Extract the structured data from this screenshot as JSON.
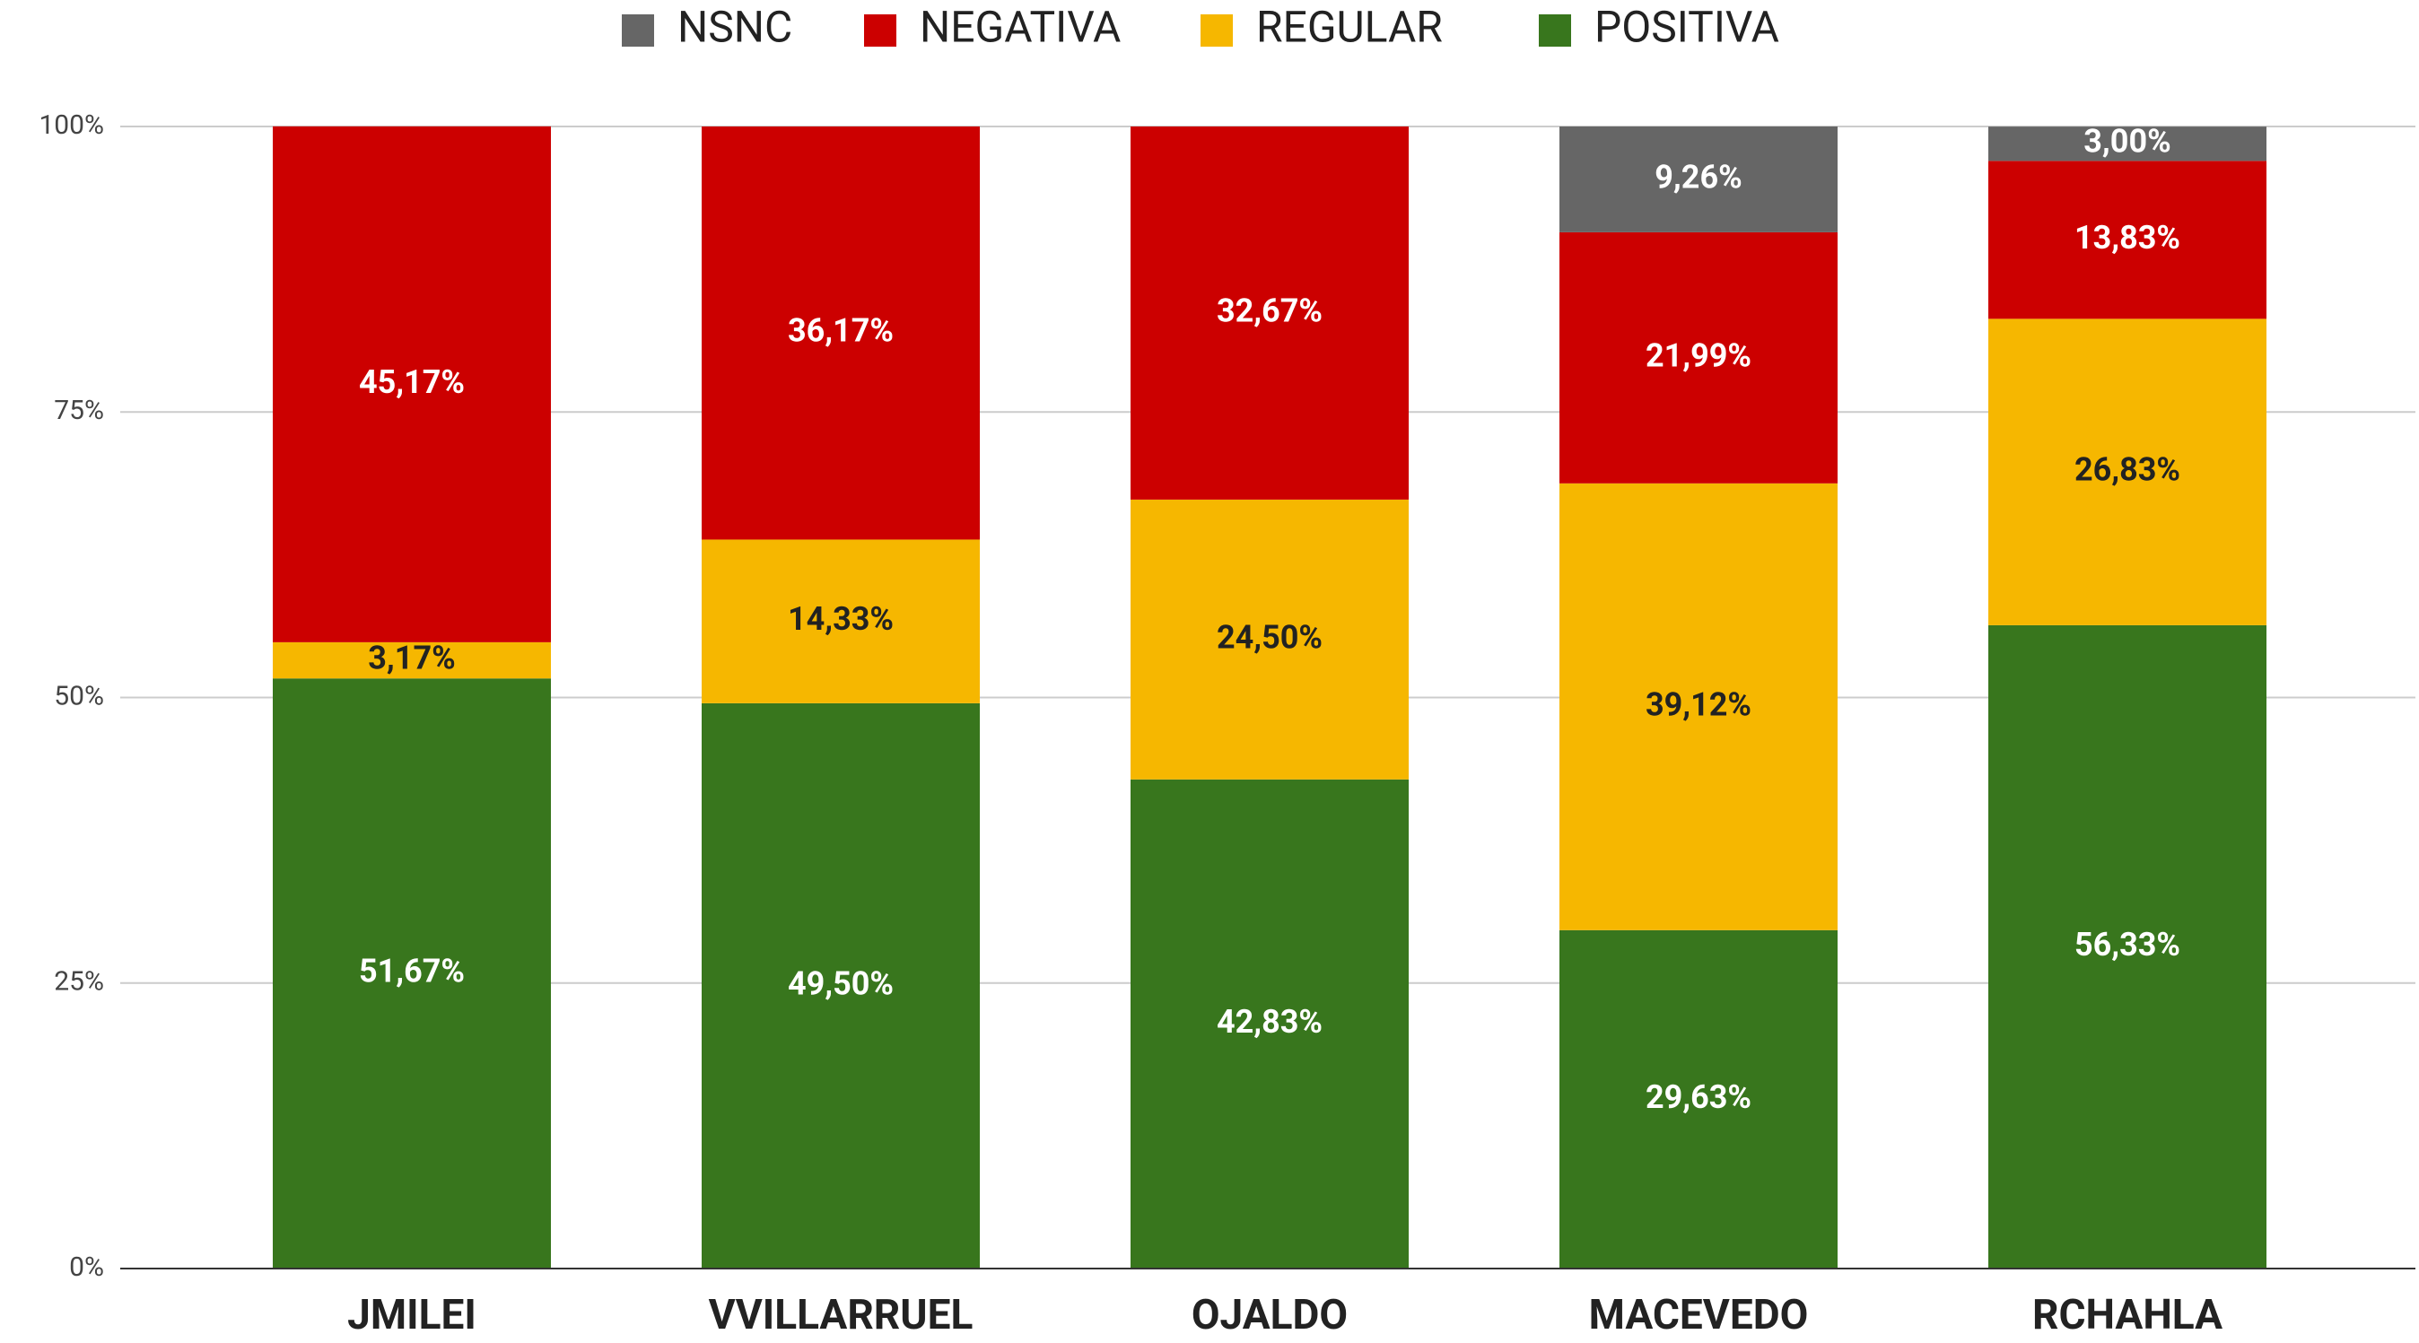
{
  "chart_data": {
    "type": "stacked_bar",
    "categories": [
      "JMILEI",
      "VVILLARRUEL",
      "OJALDO",
      "MACEVEDO",
      "RCHAHLA"
    ],
    "series": [
      {
        "name": "POSITIVA",
        "color": "#38761d",
        "values": [
          51.67,
          49.5,
          42.83,
          29.63,
          56.33
        ],
        "value_labels": [
          "51,67%",
          "49,50%",
          "42,83%",
          "29,63%",
          "56,33%"
        ]
      },
      {
        "name": "REGULAR",
        "color": "#f6b700",
        "values": [
          3.17,
          14.33,
          24.5,
          39.12,
          26.83
        ],
        "value_labels": [
          "3,17%",
          "14,33%",
          "24,50%",
          "39,12%",
          "26,83%"
        ]
      },
      {
        "name": "NEGATIVA",
        "color": "#cc0000",
        "values": [
          45.17,
          36.17,
          32.67,
          21.99,
          13.83
        ],
        "value_labels": [
          "45,17%",
          "36,17%",
          "32,67%",
          "21,99%",
          "13,83%"
        ]
      },
      {
        "name": "NSNC",
        "color": "#666666",
        "values": [
          0,
          0,
          0,
          9.26,
          3.0
        ],
        "value_labels": [
          null,
          null,
          null,
          "9,26%",
          "3,00%"
        ]
      }
    ],
    "ylim": [
      0,
      100
    ],
    "yticks": [
      {
        "value": 0,
        "label": "0%"
      },
      {
        "value": 25,
        "label": "25%"
      },
      {
        "value": 50,
        "label": "50%"
      },
      {
        "value": 75,
        "label": "75%"
      },
      {
        "value": 100,
        "label": "100%"
      }
    ],
    "grid": true,
    "legend": "top"
  }
}
